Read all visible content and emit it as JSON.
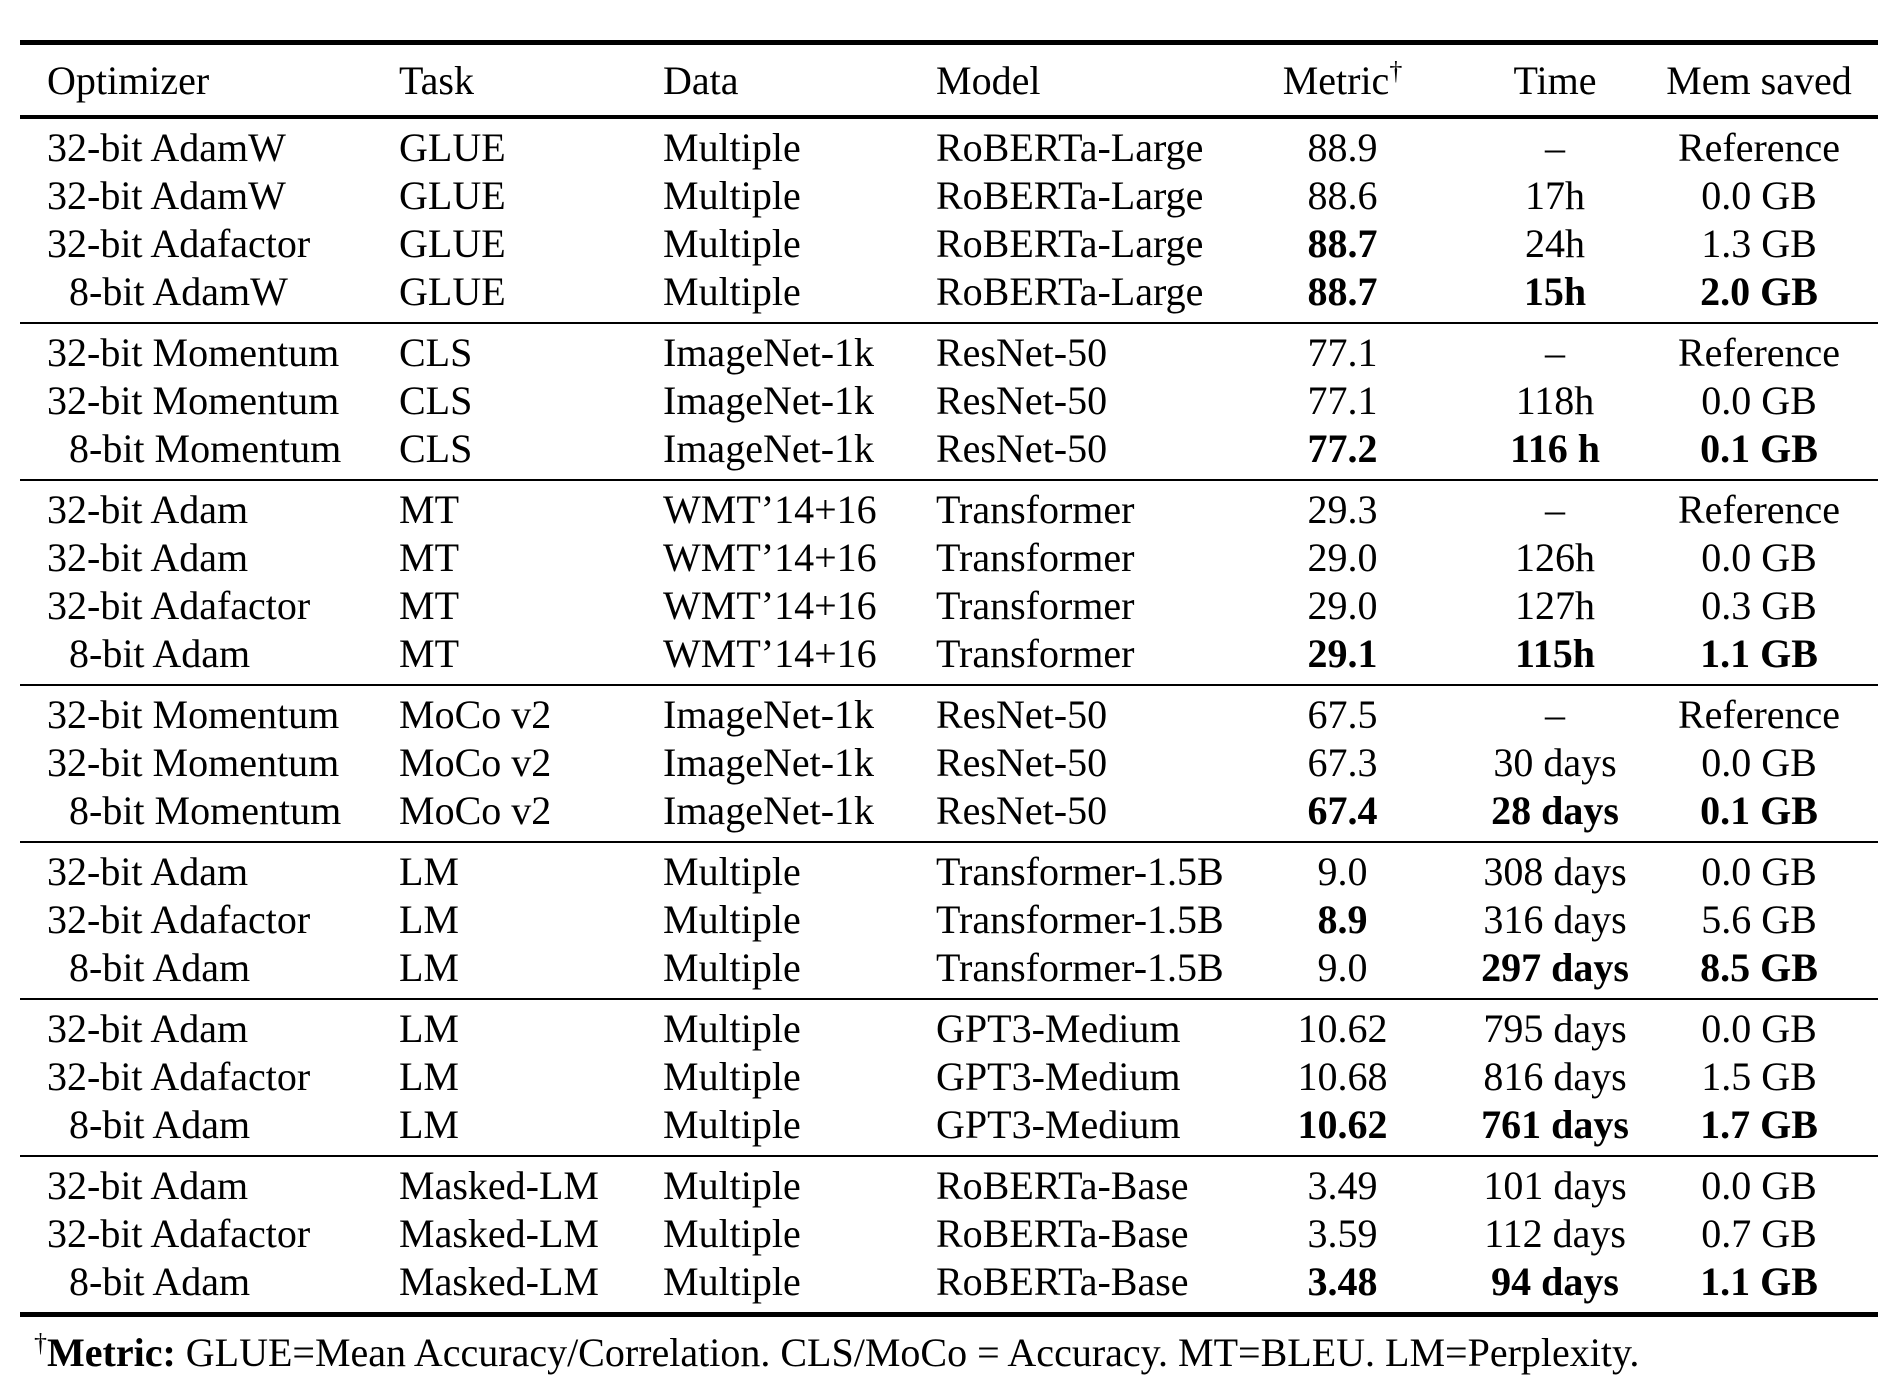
{
  "table": {
    "columns": [
      {
        "key": "optimizer",
        "label": "Optimizer"
      },
      {
        "key": "task",
        "label": "Task"
      },
      {
        "key": "data",
        "label": "Data"
      },
      {
        "key": "model",
        "label": "Model"
      },
      {
        "key": "metric",
        "label": "Metric",
        "sup": "†"
      },
      {
        "key": "time",
        "label": "Time"
      },
      {
        "key": "mem",
        "label": "Mem saved"
      }
    ],
    "groups": [
      {
        "rows": [
          {
            "optimizer": "32-bit AdamW",
            "task": "GLUE",
            "data": "Multiple",
            "model": "RoBERTa-Large",
            "metric": "88.9",
            "time": "–",
            "mem": "Reference",
            "bold": []
          },
          {
            "optimizer": "32-bit AdamW",
            "task": "GLUE",
            "data": "Multiple",
            "model": "RoBERTa-Large",
            "metric": "88.6",
            "time": "17h",
            "mem": "0.0 GB",
            "bold": []
          },
          {
            "optimizer": "32-bit Adafactor",
            "task": "GLUE",
            "data": "Multiple",
            "model": "RoBERTa-Large",
            "metric": "88.7",
            "time": "24h",
            "mem": "1.3 GB",
            "bold": [
              "metric"
            ]
          },
          {
            "optimizer": "8-bit AdamW",
            "task": "GLUE",
            "data": "Multiple",
            "model": "RoBERTa-Large",
            "metric": "88.7",
            "time": "15h",
            "mem": "2.0 GB",
            "bold": [
              "metric",
              "time",
              "mem"
            ]
          }
        ]
      },
      {
        "rows": [
          {
            "optimizer": "32-bit Momentum",
            "task": "CLS",
            "data": "ImageNet-1k",
            "model": "ResNet-50",
            "metric": "77.1",
            "time": "–",
            "mem": "Reference",
            "bold": []
          },
          {
            "optimizer": "32-bit Momentum",
            "task": "CLS",
            "data": "ImageNet-1k",
            "model": "ResNet-50",
            "metric": "77.1",
            "time": "118h",
            "mem": "0.0 GB",
            "bold": []
          },
          {
            "optimizer": "8-bit Momentum",
            "task": "CLS",
            "data": "ImageNet-1k",
            "model": "ResNet-50",
            "metric": "77.2",
            "time": "116 h",
            "mem": "0.1 GB",
            "bold": [
              "metric",
              "time",
              "mem"
            ]
          }
        ]
      },
      {
        "rows": [
          {
            "optimizer": "32-bit Adam",
            "task": "MT",
            "data": "WMT’14+16",
            "model": "Transformer",
            "metric": "29.3",
            "time": "–",
            "mem": "Reference",
            "bold": []
          },
          {
            "optimizer": "32-bit Adam",
            "task": "MT",
            "data": "WMT’14+16",
            "model": "Transformer",
            "metric": "29.0",
            "time": "126h",
            "mem": "0.0 GB",
            "bold": []
          },
          {
            "optimizer": "32-bit Adafactor",
            "task": "MT",
            "data": "WMT’14+16",
            "model": "Transformer",
            "metric": "29.0",
            "time": "127h",
            "mem": "0.3 GB",
            "bold": []
          },
          {
            "optimizer": "8-bit Adam",
            "task": "MT",
            "data": "WMT’14+16",
            "model": "Transformer",
            "metric": "29.1",
            "time": "115h",
            "mem": "1.1 GB",
            "bold": [
              "metric",
              "time",
              "mem"
            ]
          }
        ]
      },
      {
        "rows": [
          {
            "optimizer": "32-bit Momentum",
            "task": "MoCo v2",
            "data": "ImageNet-1k",
            "model": "ResNet-50",
            "metric": "67.5",
            "time": "–",
            "mem": "Reference",
            "bold": []
          },
          {
            "optimizer": "32-bit Momentum",
            "task": "MoCo v2",
            "data": "ImageNet-1k",
            "model": "ResNet-50",
            "metric": "67.3",
            "time": "30 days",
            "mem": "0.0 GB",
            "bold": []
          },
          {
            "optimizer": "8-bit Momentum",
            "task": "MoCo v2",
            "data": "ImageNet-1k",
            "model": "ResNet-50",
            "metric": "67.4",
            "time": "28 days",
            "mem": "0.1 GB",
            "bold": [
              "metric",
              "time",
              "mem"
            ]
          }
        ]
      },
      {
        "rows": [
          {
            "optimizer": "32-bit Adam",
            "task": "LM",
            "data": "Multiple",
            "model": "Transformer-1.5B",
            "metric": "9.0",
            "time": "308 days",
            "mem": "0.0 GB",
            "bold": []
          },
          {
            "optimizer": "32-bit Adafactor",
            "task": "LM",
            "data": "Multiple",
            "model": "Transformer-1.5B",
            "metric": "8.9",
            "time": "316 days",
            "mem": "5.6 GB",
            "bold": [
              "metric"
            ]
          },
          {
            "optimizer": "8-bit Adam",
            "task": "LM",
            "data": "Multiple",
            "model": "Transformer-1.5B",
            "metric": "9.0",
            "time": "297 days",
            "mem": "8.5 GB",
            "bold": [
              "time",
              "mem"
            ]
          }
        ]
      },
      {
        "rows": [
          {
            "optimizer": "32-bit Adam",
            "task": "LM",
            "data": "Multiple",
            "model": "GPT3-Medium",
            "metric": "10.62",
            "time": "795 days",
            "mem": "0.0 GB",
            "bold": []
          },
          {
            "optimizer": "32-bit Adafactor",
            "task": "LM",
            "data": "Multiple",
            "model": "GPT3-Medium",
            "metric": "10.68",
            "time": "816 days",
            "mem": "1.5 GB",
            "bold": []
          },
          {
            "optimizer": "8-bit Adam",
            "task": "LM",
            "data": "Multiple",
            "model": "GPT3-Medium",
            "metric": "10.62",
            "time": "761 days",
            "mem": "1.7 GB",
            "bold": [
              "metric",
              "time",
              "mem"
            ]
          }
        ]
      },
      {
        "rows": [
          {
            "optimizer": "32-bit Adam",
            "task": "Masked-LM",
            "data": "Multiple",
            "model": "RoBERTa-Base",
            "metric": "3.49",
            "time": "101 days",
            "mem": "0.0 GB",
            "bold": []
          },
          {
            "optimizer": "32-bit Adafactor",
            "task": "Masked-LM",
            "data": "Multiple",
            "model": "RoBERTa-Base",
            "metric": "3.59",
            "time": "112 days",
            "mem": "0.7 GB",
            "bold": []
          },
          {
            "optimizer": "8-bit Adam",
            "task": "Masked-LM",
            "data": "Multiple",
            "model": "RoBERTa-Base",
            "metric": "3.48",
            "time": "94 days",
            "mem": "1.1 GB",
            "bold": [
              "metric",
              "time",
              "mem"
            ]
          }
        ]
      }
    ]
  },
  "footnote": {
    "sup": "†",
    "lead": "Metric:",
    "text": " GLUE=Mean Accuracy/Correlation. CLS/MoCo = Accuracy. MT=BLEU. LM=Perplexity."
  }
}
